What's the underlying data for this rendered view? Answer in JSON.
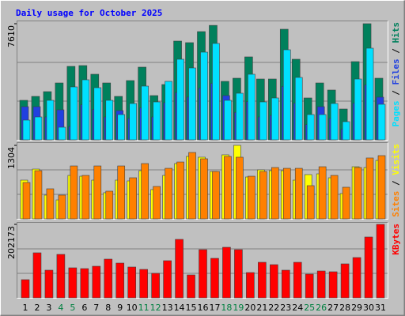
{
  "chart_data": [
    {
      "type": "bar",
      "title": "Daily usage for October 2025",
      "ylim": [
        0,
        7610
      ],
      "yticks": [
        7610
      ],
      "grid": true,
      "series": [
        {
          "name": "Hits",
          "color": "#00805c",
          "values": [
            2589,
            2847,
            3158,
            3727,
            4815,
            4866,
            4297,
            3727,
            2847,
            3883,
            4763,
            2899,
            3624,
            6471,
            6368,
            7092,
            7500,
            3831,
            4038,
            5436,
            3986,
            3986,
            7248,
            5281,
            2744,
            3727,
            3262,
            2019,
            5125,
            7610,
            4038
          ]
        },
        {
          "name": "Files",
          "color": "#2040e0",
          "values": [
            2174,
            2174,
            1500,
            1967,
            880,
            2300,
            2000,
            1500,
            1915,
            1400,
            2100,
            1500,
            2433,
            3100,
            2800,
            3400,
            3700,
            2899,
            1800,
            2500,
            1500,
            1600,
            3500,
            2400,
            1000,
            2174,
            1400,
            700,
            2400,
            3600,
            2796
          ]
        },
        {
          "name": "Pages",
          "color": "#00e0ff",
          "values": [
            1294,
            1501,
            2589,
            828,
            3469,
            3935,
            3417,
            2589,
            1657,
            2381,
            3520,
            2485,
            3831,
            5281,
            4711,
            5746,
            6316,
            2589,
            3054,
            4297,
            2485,
            2744,
            5902,
            4090,
            1657,
            1657,
            2381,
            1191,
            3986,
            6005,
            2330
          ]
        }
      ]
    },
    {
      "type": "bar",
      "ylim": [
        0,
        1304
      ],
      "yticks": [
        1304
      ],
      "grid": true,
      "series": [
        {
          "name": "Visits",
          "color": "#ffff00",
          "values": [
            687,
            883,
            421,
            336,
            771,
            757,
            687,
            463,
            687,
            673,
            855,
            519,
            771,
            981,
            1108,
            1094,
            841,
            1136,
            1304,
            743,
            869,
            855,
            855,
            687,
            785,
            799,
            729,
            449,
            925,
            911,
            1037
          ]
        },
        {
          "name": "Sites",
          "color": "#ff8000",
          "values": [
            645,
            855,
            533,
            421,
            939,
            771,
            939,
            491,
            939,
            729,
            981,
            575,
            897,
            1009,
            1178,
            1066,
            841,
            1108,
            1094,
            757,
            841,
            911,
            897,
            897,
            589,
            925,
            771,
            561,
            911,
            1080,
            1122
          ]
        }
      ]
    },
    {
      "type": "bar",
      "ylim": [
        0,
        202173
      ],
      "yticks": [
        202173
      ],
      "grid": true,
      "categories": [
        "1",
        "2",
        "3",
        "4",
        "5",
        "6",
        "7",
        "8",
        "9",
        "10",
        "11",
        "12",
        "13",
        "14",
        "15",
        "16",
        "17",
        "18",
        "19",
        "20",
        "21",
        "22",
        "23",
        "24",
        "25",
        "26",
        "27",
        "28",
        "29",
        "30",
        "31"
      ],
      "category_label_colors": [
        "#000000",
        "#000000",
        "#000000",
        "#008040",
        "#008040",
        "#000000",
        "#000000",
        "#000000",
        "#000000",
        "#000000",
        "#008040",
        "#008040",
        "#000000",
        "#000000",
        "#000000",
        "#000000",
        "#000000",
        "#008040",
        "#008040",
        "#000000",
        "#000000",
        "#000000",
        "#000000",
        "#000000",
        "#008040",
        "#008040",
        "#000000",
        "#000000",
        "#000000",
        "#000000",
        "#000000"
      ],
      "series": [
        {
          "name": "KBytes",
          "color": "#ff0000",
          "values": [
            50002,
            123918,
            76090,
            119570,
            82612,
            80438,
            86960,
            106526,
            95656,
            84786,
            78264,
            67394,
            102178,
            160876,
            63046,
            132614,
            108700,
            139136,
            132614,
            69568,
            97830,
            91308,
            76090,
            97830,
            65220,
            73916,
            71742,
            93482,
            110874,
            167398,
            202173
          ]
        }
      ]
    }
  ]
}
